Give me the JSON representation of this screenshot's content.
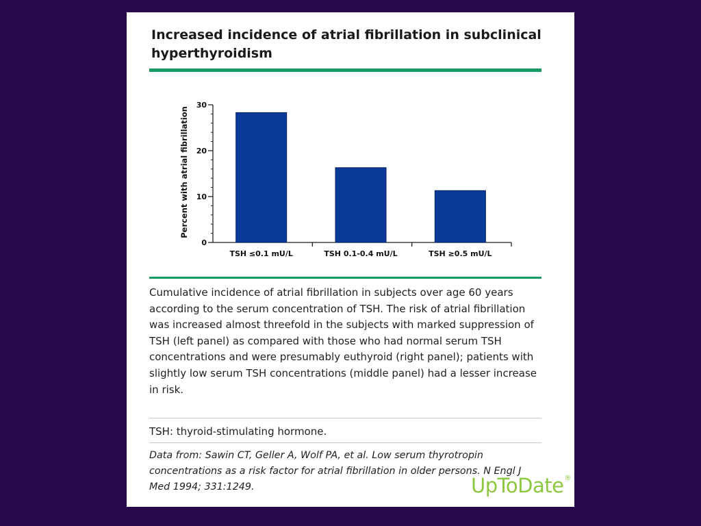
{
  "header": {
    "title": "Increased incidence of atrial fibrillation in subclinical hyperthyroidism"
  },
  "chart_data": {
    "type": "bar",
    "categories": [
      "TSH ≤0.1 mU/L",
      "TSH 0.1-0.4 mU/L",
      "TSH ≥0.5 mU/L"
    ],
    "values": [
      28.3,
      16.3,
      11.3
    ],
    "ylabel": "Percent with atrial fibrillation",
    "xlabel": "",
    "ylim": [
      0,
      30
    ],
    "yticks": [
      0,
      10,
      20,
      30
    ],
    "bar_color": "#0a3a9a",
    "grid": false
  },
  "caption": "Cumulative incidence of atrial fibrillation in subjects over age 60 years according to the serum concentration of TSH. The risk of atrial fibrillation was increased almost threefold in the subjects with marked suppression of TSH (left panel) as compared with those who had normal serum TSH concentrations and were presumably euthyroid (right panel); patients with slightly low serum TSH concentrations (middle panel) had a lesser increase in risk.",
  "abbreviation": "TSH: thyroid-stimulating hormone.",
  "source": "Data from: Sawin CT, Geller A, Wolf PA, et al. Low serum thyrotropin concentrations as a risk factor for atrial fibrillation in older persons. N Engl J Med 1994; 331:1249.",
  "logo": {
    "text": "UpToDate",
    "mark": "®"
  },
  "colors": {
    "background": "#2a0a4a",
    "accent_green": "#179a63",
    "logo_green": "#8dc63f"
  }
}
